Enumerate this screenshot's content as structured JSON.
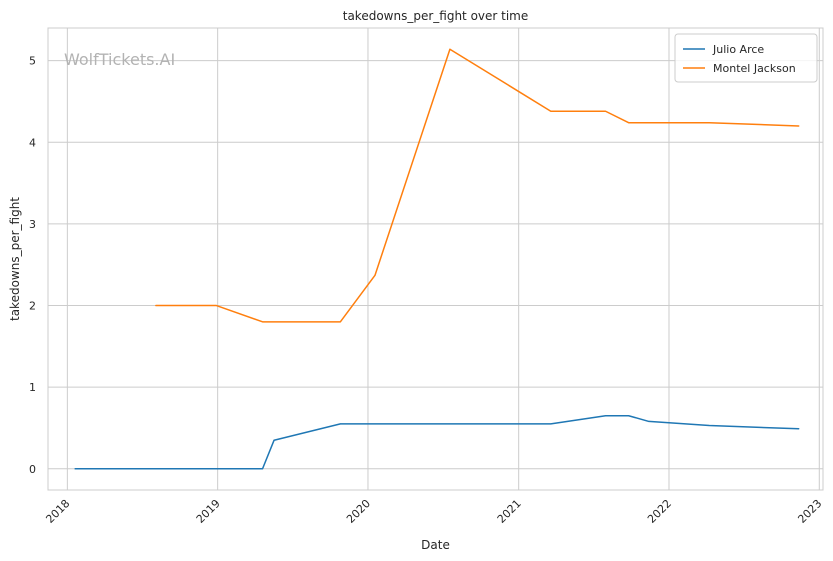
{
  "chart_data": {
    "type": "line",
    "title": "takedowns_per_fight over time",
    "xlabel": "Date",
    "ylabel": "takedowns_per_fight",
    "watermark": "WolfTickets.AI",
    "xlim": [
      "2017-11-15",
      "2023-01-10"
    ],
    "ylim": [
      -0.26,
      5.4
    ],
    "x_ticks": [
      "2018-01-01",
      "2019-01-01",
      "2020-01-01",
      "2021-01-01",
      "2022-01-01",
      "2023-01-01"
    ],
    "x_tick_labels": [
      "2018",
      "2019",
      "2020",
      "2021",
      "2022",
      "2023"
    ],
    "y_ticks": [
      0,
      1,
      2,
      3,
      4,
      5
    ],
    "y_tick_labels": [
      "0",
      "1",
      "2",
      "3",
      "4",
      "5"
    ],
    "grid": true,
    "legend_position": "top-right",
    "series": [
      {
        "name": "Julio Arce",
        "color": "#1f77b4",
        "points": [
          [
            "2018-01-20",
            0
          ],
          [
            "2019-04-20",
            0
          ],
          [
            "2019-05-18",
            0.35
          ],
          [
            "2019-10-26",
            0.55
          ],
          [
            "2021-03-20",
            0.55
          ],
          [
            "2021-07-31",
            0.65
          ],
          [
            "2021-09-25",
            0.65
          ],
          [
            "2021-11-13",
            0.58
          ],
          [
            "2022-04-09",
            0.53
          ],
          [
            "2022-11-12",
            0.49
          ]
        ]
      },
      {
        "name": "Montel Jackson",
        "color": "#ff7f0e",
        "points": [
          [
            "2018-08-04",
            2
          ],
          [
            "2018-12-29",
            2
          ],
          [
            "2019-04-20",
            1.8
          ],
          [
            "2019-10-26",
            1.8
          ],
          [
            "2020-01-18",
            2.37
          ],
          [
            "2020-07-18",
            5.14
          ],
          [
            "2021-03-20",
            4.38
          ],
          [
            "2021-07-31",
            4.38
          ],
          [
            "2021-09-25",
            4.24
          ],
          [
            "2022-04-09",
            4.24
          ],
          [
            "2022-11-12",
            4.2
          ]
        ]
      }
    ]
  }
}
